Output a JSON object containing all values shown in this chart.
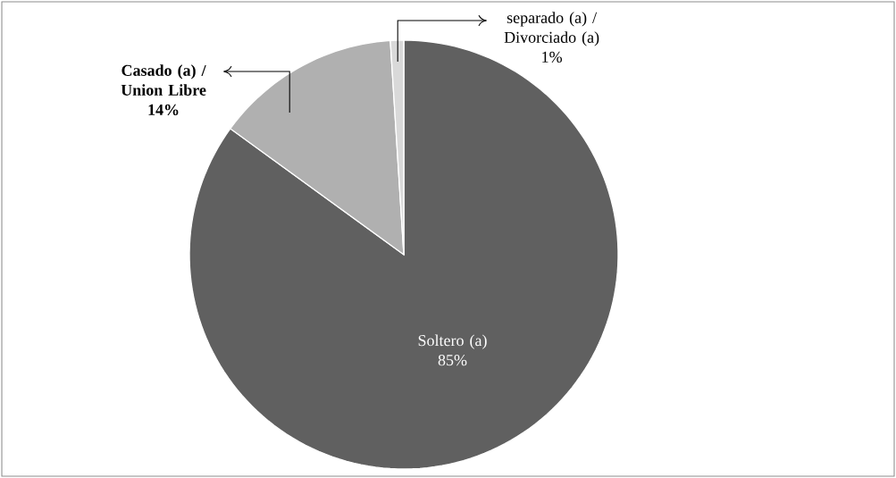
{
  "chart_data": {
    "type": "pie",
    "categories": [
      "Soltero (a)",
      "Casado (a) / Union Libre",
      "separado (a) / Divorciado (a)"
    ],
    "values": [
      85,
      14,
      1
    ],
    "colors": [
      "#606060",
      "#b0b0b0",
      "#d9d9d9"
    ],
    "value_labels": [
      "85%",
      "14%",
      "1%"
    ]
  }
}
